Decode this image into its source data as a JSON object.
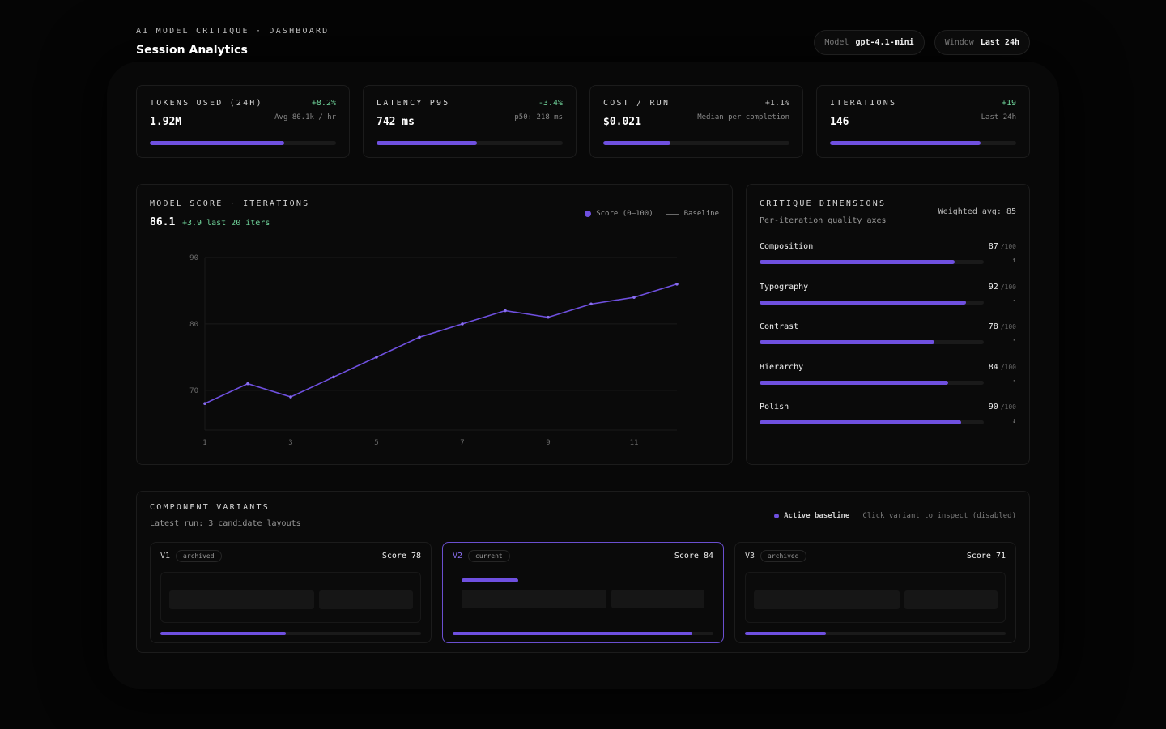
{
  "header": {
    "eyebrow": "AI MODEL CRITIQUE · DASHBOARD",
    "title": "Session Analytics",
    "model_key": "Model",
    "model_value": "gpt-4.1-mini",
    "window_key": "Window",
    "window_value": "Last 24h"
  },
  "colors": {
    "accent": "#6f50e0",
    "positive": "#6fd39a",
    "neutral": "#bdbdbd"
  },
  "kpis": [
    {
      "label": "TOKENS USED (24H)",
      "delta": "+8.2%",
      "delta_color": "#6fd39a",
      "value": "1.92M",
      "note": "Avg 80.1k / hr",
      "progress": 0.72
    },
    {
      "label": "LATENCY P95",
      "delta": "-3.4%",
      "delta_color": "#6fd39a",
      "value": "742 ms",
      "note": "p50: 218 ms",
      "progress": 0.54
    },
    {
      "label": "COST / RUN",
      "delta": "+1.1%",
      "delta_color": "#bdbdbd",
      "value": "$0.021",
      "note": "Median per completion",
      "progress": 0.36
    },
    {
      "label": "ITERATIONS",
      "delta": "+19",
      "delta_color": "#6fd39a",
      "value": "146",
      "note": "Last 24h",
      "progress": 0.81
    }
  ],
  "score_panel": {
    "label": "MODEL SCORE · ITERATIONS",
    "value": "86.1",
    "trend": "+3.9 last 20 iters",
    "legend_score": "Score (0–100)",
    "legend_baseline": "Baseline"
  },
  "chart_data": {
    "type": "line",
    "x": [
      1,
      2,
      3,
      4,
      5,
      6,
      7,
      8,
      9,
      10,
      11,
      12
    ],
    "series": [
      {
        "name": "Score (0–100)",
        "values": [
          68,
          71,
          69,
          72,
          75,
          78,
          80,
          82,
          81,
          83,
          84,
          86
        ]
      }
    ],
    "x_ticks": [
      1,
      3,
      5,
      7,
      9,
      11
    ],
    "y_ticks": [
      70,
      80,
      90
    ],
    "ylim": [
      64,
      90
    ],
    "xlim": [
      1,
      12
    ],
    "grid": true,
    "legend": "top-right"
  },
  "dimensions": {
    "label": "CRITIQUE DIMENSIONS",
    "desc": "Per-iteration quality axes",
    "weighted": "Weighted avg: 85",
    "max_label": "/100",
    "items": [
      {
        "name": "Composition",
        "score": "87",
        "value": 0.87,
        "mark": "↑"
      },
      {
        "name": "Typography",
        "score": "92",
        "value": 0.92,
        "mark": "·"
      },
      {
        "name": "Contrast",
        "score": "78",
        "value": 0.78,
        "mark": "·"
      },
      {
        "name": "Hierarchy",
        "score": "84",
        "value": 0.84,
        "mark": "·"
      },
      {
        "name": "Polish",
        "score": "90",
        "value": 0.9,
        "mark": "↓"
      }
    ]
  },
  "variants": {
    "label": "COMPONENT VARIANTS",
    "desc": "Latest run: 3 candidate layouts",
    "active": "Active baseline",
    "hint": "Click variant to inspect (disabled)",
    "items": [
      {
        "id": "V1",
        "tag": "archived",
        "score": "Score 78",
        "progress": 0.48
      },
      {
        "id": "V2",
        "tag": "current",
        "score": "Score 84",
        "progress": 0.92
      },
      {
        "id": "V3",
        "tag": "archived",
        "score": "Score 71",
        "progress": 0.31
      }
    ]
  }
}
